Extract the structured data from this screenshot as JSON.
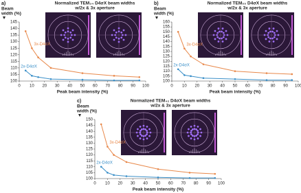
{
  "chart_data": [
    {
      "type": "line",
      "label": "a)",
      "title": [
        "Normalized TEM₃₄ D4σX beam widths",
        "w/2x & 3x aperture"
      ],
      "y_label": [
        "Beam",
        "width (%)"
      ],
      "x_label": "Peak beam intensity (%)",
      "x": [
        5,
        10,
        15,
        25,
        50,
        75,
        95
      ],
      "series": [
        {
          "name": "3x-D4σX",
          "color": "#e8884a",
          "values": [
            138,
            125,
            118,
            110,
            106,
            104,
            103
          ]
        },
        {
          "name": "2x-D4σX",
          "color": "#3a8fc8",
          "values": [
            108,
            104,
            103,
            101.5,
            101,
            100.5,
            100.5
          ]
        }
      ],
      "xlim": [
        0,
        100
      ],
      "xticks": [
        0,
        10,
        20,
        30,
        40,
        50,
        60,
        70,
        80,
        90,
        100
      ],
      "ylim": [
        100,
        145
      ],
      "yticks": [
        100,
        105,
        110,
        115,
        120,
        125,
        130,
        135,
        140,
        145
      ]
    },
    {
      "type": "line",
      "label": "b)",
      "title": [
        "Normalized TEM₅₅ D4σX beam widths",
        "w/2x & 3x aperture"
      ],
      "y_label": [
        "Beam",
        "width (%)"
      ],
      "x_label": "Peak beam intensity (%)",
      "x": [
        5,
        10,
        15,
        25,
        50,
        75,
        95
      ],
      "series": [
        {
          "name": "3x-D4σX",
          "color": "#e8884a",
          "values": [
            150,
            133,
            125,
            117,
            110,
            108,
            107
          ]
        },
        {
          "name": "2x-D4σX",
          "color": "#3a8fc8",
          "values": [
            112,
            106,
            105,
            103,
            102,
            101,
            101
          ]
        }
      ],
      "xlim": [
        0,
        100
      ],
      "xticks": [
        0,
        10,
        20,
        30,
        40,
        50,
        60,
        70,
        80,
        90,
        100
      ],
      "ylim": [
        100,
        160
      ],
      "yticks": [
        100,
        105,
        110,
        115,
        120,
        125,
        130,
        135,
        140,
        145,
        150,
        155,
        160
      ]
    },
    {
      "type": "line",
      "label": "c)",
      "title": [
        "Normalized TEM₄₂ D4σX beam widths",
        "w/2x & 3x aperture"
      ],
      "y_label": [
        "Beam",
        "width (%)"
      ],
      "x_label": "Peak beam intensity (%)",
      "x": [
        5,
        10,
        15,
        25,
        50,
        75,
        95
      ],
      "series": [
        {
          "name": "3x-D4σX",
          "color": "#e8884a",
          "values": [
            146,
            127,
            120,
            114,
            108,
            105,
            104
          ]
        },
        {
          "name": "2x-D4σX",
          "color": "#3a8fc8",
          "values": [
            110,
            105,
            103,
            102,
            101,
            100.5,
            100.5
          ]
        }
      ],
      "xlim": [
        0,
        100
      ],
      "xticks": [
        0,
        10,
        20,
        30,
        40,
        50,
        60,
        70,
        80,
        90,
        100
      ],
      "ylim": [
        100,
        150
      ],
      "yticks": [
        100,
        105,
        110,
        115,
        120,
        125,
        130,
        135,
        140,
        145,
        150
      ]
    }
  ]
}
